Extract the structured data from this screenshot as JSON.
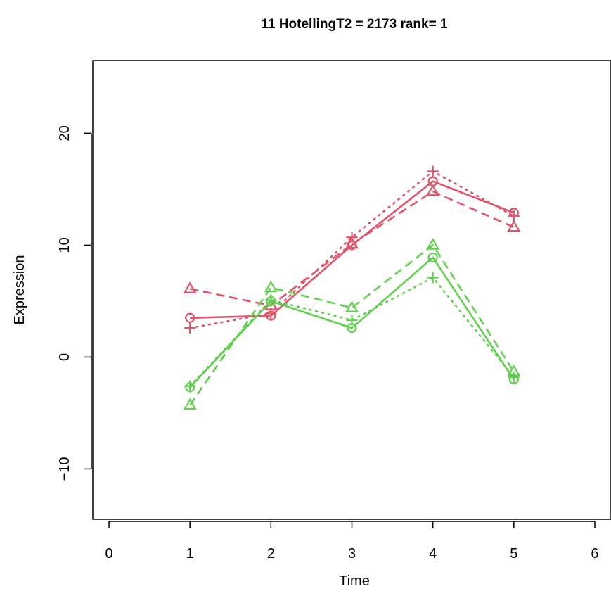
{
  "chart_data": {
    "type": "line",
    "title": "11  HotellingT2 = 2173  rank= 1",
    "xlabel": "Time",
    "ylabel": "Expression",
    "xlim": [
      -0.2,
      6.2
    ],
    "ylim": [
      -14.5,
      26.5
    ],
    "xticks": [
      0,
      1,
      2,
      3,
      4,
      5,
      6
    ],
    "yticks": [
      -10,
      0,
      10,
      20
    ],
    "grid": false,
    "colors": {
      "group_a": "#DF536B",
      "group_b": "#61D04F"
    },
    "series": [
      {
        "group": "group_a",
        "line": "solid",
        "marker": "circle",
        "x": [
          1,
          2,
          3,
          4,
          5
        ],
        "y": [
          3.5,
          3.7,
          10.0,
          15.7,
          12.9
        ]
      },
      {
        "group": "group_a",
        "line": "dashed",
        "marker": "triangle",
        "x": [
          1,
          2,
          3,
          4,
          5
        ],
        "y": [
          6.1,
          4.6,
          10.1,
          14.8,
          11.6
        ]
      },
      {
        "group": "group_a",
        "line": "dotted",
        "marker": "plus",
        "x": [
          1,
          2,
          3,
          4,
          5
        ],
        "y": [
          2.6,
          3.9,
          10.7,
          16.6,
          12.6
        ]
      },
      {
        "group": "group_b",
        "line": "solid",
        "marker": "circle",
        "x": [
          1,
          2,
          3,
          4,
          5
        ],
        "y": [
          -2.7,
          5.0,
          2.6,
          8.9,
          -2.0
        ]
      },
      {
        "group": "group_b",
        "line": "dashed",
        "marker": "triangle",
        "x": [
          1,
          2,
          3,
          4,
          5
        ],
        "y": [
          -4.3,
          6.2,
          4.4,
          10.0,
          -1.3
        ]
      },
      {
        "group": "group_b",
        "line": "dotted",
        "marker": "plus",
        "x": [
          1,
          2,
          3,
          4,
          5
        ],
        "y": [
          -2.6,
          5.1,
          3.3,
          7.1,
          -1.8
        ]
      }
    ]
  }
}
